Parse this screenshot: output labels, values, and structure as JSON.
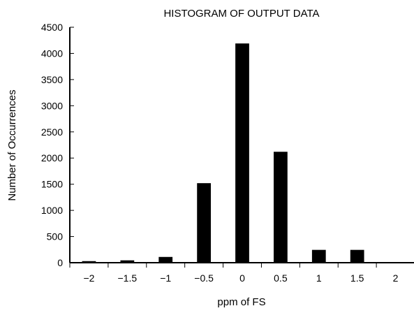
{
  "chart_data": {
    "type": "bar",
    "title": "HISTOGRAM OF OUTPUT DATA",
    "xlabel": "ppm of FS",
    "ylabel": "Number of Occurrences",
    "categories": [
      "−2",
      "−1.5",
      "−1",
      "−0.5",
      "0",
      "0.5",
      "1",
      "1.5",
      "2"
    ],
    "values": [
      30,
      45,
      110,
      1520,
      4190,
      2120,
      245,
      245,
      0
    ],
    "ylim": [
      0,
      4500
    ],
    "yticks": [
      "0",
      "500",
      "1000",
      "1500",
      "2000",
      "2500",
      "3000",
      "3500",
      "4000",
      "4500"
    ],
    "grid": false,
    "bar_color": "#000000"
  }
}
